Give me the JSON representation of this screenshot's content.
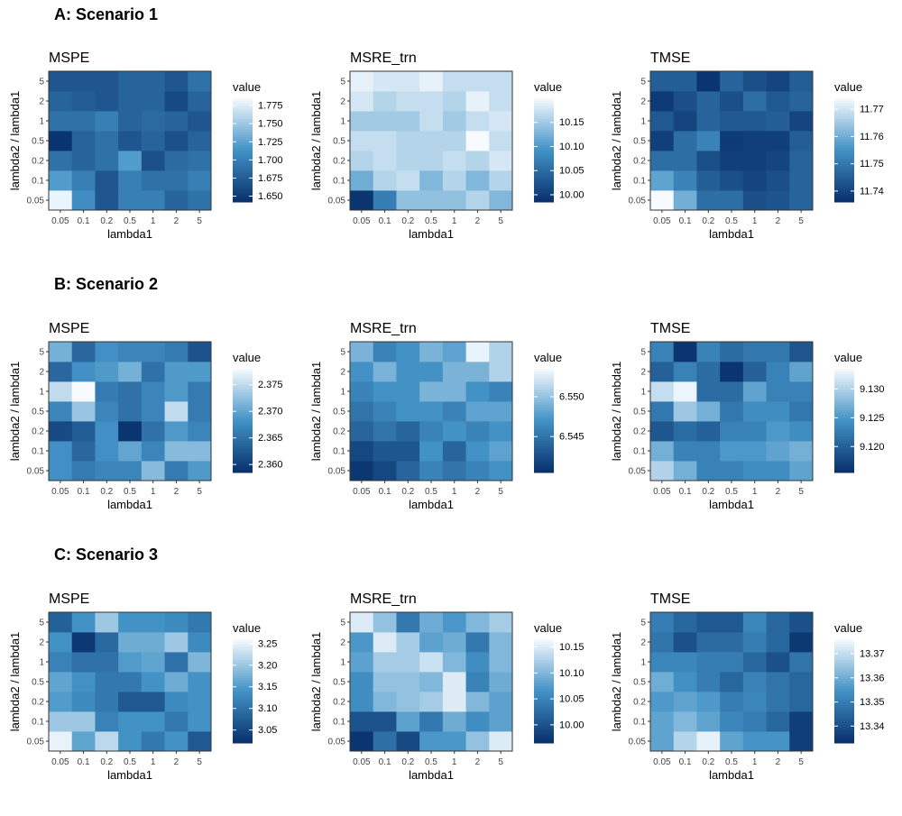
{
  "figure": {
    "sections": [
      {
        "title": "A: Scenario 1"
      },
      {
        "title": "B: Scenario 2"
      },
      {
        "title": "C: Scenario 3"
      }
    ]
  },
  "colors": {
    "low": "#08306b",
    "mid": "#4292c6",
    "high": "#f7fbff",
    "panel_border": "#333333",
    "text": "#000000",
    "tick_text": "#444444"
  },
  "chart_data": [
    {
      "type": "heatmap",
      "section": 0,
      "title": "MSPE",
      "xlabel": "lambda1",
      "ylabel": "lambda2 / lambda1",
      "x_categories": [
        "0.05",
        "0.1",
        "0.2",
        "0.5",
        "1",
        "2",
        "5"
      ],
      "y_categories": [
        "0.05",
        "0.1",
        "0.2",
        "0.5",
        "1",
        "2",
        "5"
      ],
      "legend": {
        "title": "value",
        "ticks": [
          "1.650",
          "1.675",
          "1.700",
          "1.725",
          "1.750",
          "1.775"
        ],
        "tick_values": [
          1.65,
          1.675,
          1.7,
          1.725,
          1.75,
          1.775
        ],
        "range": [
          1.642,
          1.785
        ]
      },
      "values": [
        [
          1.78,
          1.71,
          1.67,
          1.7,
          1.7,
          1.68,
          1.69
        ],
        [
          1.72,
          1.7,
          1.67,
          1.7,
          1.69,
          1.69,
          1.7
        ],
        [
          1.69,
          1.68,
          1.69,
          1.72,
          1.665,
          1.685,
          1.69
        ],
        [
          1.645,
          1.68,
          1.69,
          1.67,
          1.68,
          1.665,
          1.68
        ],
        [
          1.69,
          1.69,
          1.7,
          1.68,
          1.685,
          1.68,
          1.67
        ],
        [
          1.68,
          1.675,
          1.67,
          1.68,
          1.68,
          1.66,
          1.68
        ],
        [
          1.67,
          1.67,
          1.67,
          1.68,
          1.68,
          1.67,
          1.69
        ]
      ]
    },
    {
      "type": "heatmap",
      "section": 0,
      "title": "MSRE_trn",
      "xlabel": "lambda1",
      "ylabel": "lambda2 / lambda1",
      "x_categories": [
        "0.05",
        "0.1",
        "0.2",
        "0.5",
        "1",
        "2",
        "5"
      ],
      "y_categories": [
        "0.05",
        "0.1",
        "0.2",
        "0.5",
        "1",
        "2",
        "5"
      ],
      "legend": {
        "title": "value",
        "ticks": [
          "10.00",
          "10.05",
          "10.10",
          "10.15"
        ],
        "tick_values": [
          10.0,
          10.05,
          10.1,
          10.15
        ],
        "range": [
          9.985,
          10.2
        ]
      },
      "values": [
        [
          9.99,
          10.07,
          10.14,
          10.14,
          10.14,
          10.16,
          10.13
        ],
        [
          10.12,
          10.16,
          10.17,
          10.13,
          10.16,
          10.13,
          10.16
        ],
        [
          10.16,
          10.17,
          10.16,
          10.16,
          10.17,
          10.16,
          10.18
        ],
        [
          10.17,
          10.17,
          10.16,
          10.16,
          10.16,
          10.2,
          10.17
        ],
        [
          10.15,
          10.15,
          10.15,
          10.17,
          10.15,
          10.17,
          10.18
        ],
        [
          10.18,
          10.16,
          10.17,
          10.17,
          10.16,
          10.19,
          10.17
        ],
        [
          10.19,
          10.18,
          10.18,
          10.19,
          10.17,
          10.17,
          10.17
        ]
      ]
    },
    {
      "type": "heatmap",
      "section": 0,
      "title": "TMSE",
      "xlabel": "lambda1",
      "ylabel": "lambda2 / lambda1",
      "x_categories": [
        "0.05",
        "0.1",
        "0.2",
        "0.5",
        "1",
        "2",
        "5"
      ],
      "y_categories": [
        "0.05",
        "0.1",
        "0.2",
        "0.5",
        "1",
        "2",
        "5"
      ],
      "legend": {
        "title": "value",
        "ticks": [
          "11.74",
          "11.75",
          "11.76",
          "11.77"
        ],
        "tick_values": [
          11.74,
          11.75,
          11.76,
          11.77
        ],
        "range": [
          11.736,
          11.774
        ]
      },
      "values": [
        [
          11.774,
          11.76,
          11.748,
          11.748,
          11.742,
          11.743,
          11.746
        ],
        [
          11.758,
          11.752,
          11.745,
          11.742,
          11.74,
          11.742,
          11.746
        ],
        [
          11.748,
          11.748,
          11.742,
          11.739,
          11.739,
          11.74,
          11.746
        ],
        [
          11.739,
          11.748,
          11.752,
          11.738,
          11.739,
          11.739,
          11.745
        ],
        [
          11.744,
          11.74,
          11.746,
          11.744,
          11.744,
          11.745,
          11.74
        ],
        [
          11.738,
          11.742,
          11.746,
          11.742,
          11.748,
          11.744,
          11.746
        ],
        [
          11.745,
          11.745,
          11.737,
          11.746,
          11.742,
          11.74,
          11.745
        ]
      ]
    },
    {
      "type": "heatmap",
      "section": 1,
      "title": "MSPE",
      "xlabel": "lambda1",
      "ylabel": "lambda2 / lambda1",
      "x_categories": [
        "0.05",
        "0.1",
        "0.2",
        "0.5",
        "1",
        "2",
        "5"
      ],
      "y_categories": [
        "0.05",
        "0.1",
        "0.2",
        "0.5",
        "1",
        "2",
        "5"
      ],
      "legend": {
        "title": "value",
        "ticks": [
          "2.360",
          "2.365",
          "2.370",
          "2.375"
        ],
        "tick_values": [
          2.36,
          2.365,
          2.37,
          2.375
        ],
        "range": [
          2.3585,
          2.378
        ]
      },
      "values": [
        [
          2.368,
          2.366,
          2.367,
          2.367,
          2.372,
          2.366,
          2.369
        ],
        [
          2.368,
          2.364,
          2.368,
          2.37,
          2.367,
          2.372,
          2.372
        ],
        [
          2.361,
          2.363,
          2.368,
          2.359,
          2.365,
          2.369,
          2.367
        ],
        [
          2.367,
          2.373,
          2.367,
          2.365,
          2.367,
          2.375,
          2.366
        ],
        [
          2.375,
          2.378,
          2.366,
          2.365,
          2.367,
          2.369,
          2.366
        ],
        [
          2.364,
          2.368,
          2.369,
          2.371,
          2.365,
          2.369,
          2.369
        ],
        [
          2.371,
          2.364,
          2.368,
          2.367,
          2.367,
          2.366,
          2.362
        ]
      ]
    },
    {
      "type": "heatmap",
      "section": 1,
      "title": "MSRE_trn",
      "xlabel": "lambda1",
      "ylabel": "lambda2 / lambda1",
      "x_categories": [
        "0.05",
        "0.1",
        "0.2",
        "0.5",
        "1",
        "2",
        "5"
      ],
      "y_categories": [
        "0.05",
        "0.1",
        "0.2",
        "0.5",
        "1",
        "2",
        "5"
      ],
      "legend": {
        "title": "value",
        "ticks": [
          "6.545",
          "6.550"
        ],
        "tick_values": [
          6.545,
          6.55
        ],
        "range": [
          6.5405,
          6.5535
        ]
      },
      "values": [
        [
          6.541,
          6.542,
          6.544,
          6.546,
          6.545,
          6.546,
          6.547
        ],
        [
          6.542,
          6.543,
          6.543,
          6.547,
          6.544,
          6.547,
          6.548
        ],
        [
          6.544,
          6.545,
          6.544,
          6.546,
          6.547,
          6.546,
          6.547
        ],
        [
          6.545,
          6.546,
          6.547,
          6.547,
          6.546,
          6.548,
          6.548
        ],
        [
          6.546,
          6.547,
          6.547,
          6.549,
          6.549,
          6.547,
          6.546
        ],
        [
          6.547,
          6.549,
          6.547,
          6.547,
          6.549,
          6.549,
          6.551
        ],
        [
          6.549,
          6.546,
          6.547,
          6.549,
          6.548,
          6.553,
          6.551
        ]
      ]
    },
    {
      "type": "heatmap",
      "section": 1,
      "title": "TMSE",
      "xlabel": "lambda1",
      "ylabel": "lambda2 / lambda1",
      "x_categories": [
        "0.05",
        "0.1",
        "0.2",
        "0.5",
        "1",
        "2",
        "5"
      ],
      "y_categories": [
        "0.05",
        "0.1",
        "0.2",
        "0.5",
        "1",
        "2",
        "5"
      ],
      "legend": {
        "title": "value",
        "ticks": [
          "9.120",
          "9.125",
          "9.130"
        ],
        "tick_values": [
          9.12,
          9.125,
          9.13
        ],
        "range": [
          9.1155,
          9.1335
        ]
      },
      "values": [
        [
          9.13,
          9.127,
          9.123,
          9.123,
          9.124,
          9.124,
          9.126
        ],
        [
          9.127,
          9.123,
          9.123,
          9.125,
          9.125,
          9.126,
          9.127
        ],
        [
          9.119,
          9.121,
          9.12,
          9.123,
          9.123,
          9.125,
          9.124
        ],
        [
          9.122,
          9.129,
          9.127,
          9.122,
          9.124,
          9.124,
          9.122
        ],
        [
          9.131,
          9.133,
          9.121,
          9.121,
          9.126,
          9.123,
          9.123
        ],
        [
          9.12,
          9.123,
          9.121,
          9.116,
          9.12,
          9.123,
          9.126
        ],
        [
          9.123,
          9.116,
          9.123,
          9.121,
          9.122,
          9.122,
          9.119
        ]
      ]
    },
    {
      "type": "heatmap",
      "section": 2,
      "title": "MSPE",
      "xlabel": "lambda1",
      "ylabel": "lambda2 / lambda1",
      "x_categories": [
        "0.05",
        "0.1",
        "0.2",
        "0.5",
        "1",
        "2",
        "5"
      ],
      "y_categories": [
        "0.05",
        "0.1",
        "0.2",
        "0.5",
        "1",
        "2",
        "5"
      ],
      "legend": {
        "title": "value",
        "ticks": [
          "3.05",
          "3.10",
          "3.15",
          "3.20",
          "3.25"
        ],
        "tick_values": [
          3.05,
          3.1,
          3.15,
          3.2,
          3.25
        ],
        "range": [
          3.02,
          3.26
        ]
      },
      "values": [
        [
          3.25,
          3.16,
          3.22,
          3.14,
          3.11,
          3.14,
          3.07
        ],
        [
          3.2,
          3.2,
          3.12,
          3.14,
          3.14,
          3.11,
          3.14
        ],
        [
          3.15,
          3.13,
          3.11,
          3.07,
          3.07,
          3.13,
          3.14
        ],
        [
          3.16,
          3.14,
          3.11,
          3.11,
          3.14,
          3.17,
          3.14
        ],
        [
          3.12,
          3.1,
          3.1,
          3.15,
          3.16,
          3.1,
          3.18
        ],
        [
          3.14,
          3.03,
          3.09,
          3.17,
          3.17,
          3.2,
          3.13
        ],
        [
          3.08,
          3.14,
          3.2,
          3.14,
          3.14,
          3.13,
          3.11
        ]
      ]
    },
    {
      "type": "heatmap",
      "section": 2,
      "title": "MSRE_trn",
      "xlabel": "lambda1",
      "ylabel": "lambda2 / lambda1",
      "x_categories": [
        "0.05",
        "0.1",
        "0.2",
        "0.5",
        "1",
        "2",
        "5"
      ],
      "y_categories": [
        "0.05",
        "0.1",
        "0.2",
        "0.5",
        "1",
        "2",
        "5"
      ],
      "legend": {
        "title": "value",
        "ticks": [
          "10.00",
          "10.05",
          "10.10",
          "10.15"
        ],
        "tick_values": [
          10.0,
          10.05,
          10.1,
          10.15
        ],
        "range": [
          9.965,
          10.165
        ]
      },
      "values": [
        [
          9.97,
          10.03,
          9.99,
          10.07,
          10.07,
          10.11,
          10.15
        ],
        [
          10.0,
          10.0,
          10.08,
          10.04,
          10.09,
          10.06,
          10.08
        ],
        [
          10.06,
          10.1,
          10.11,
          10.12,
          10.15,
          10.1,
          10.08
        ],
        [
          10.06,
          10.11,
          10.11,
          10.1,
          10.15,
          10.05,
          10.09
        ],
        [
          10.08,
          10.12,
          10.12,
          10.14,
          10.1,
          10.06,
          10.1
        ],
        [
          10.07,
          10.15,
          10.12,
          10.08,
          10.09,
          10.04,
          10.1
        ],
        [
          10.15,
          10.11,
          10.04,
          10.09,
          10.07,
          10.1,
          10.12
        ]
      ]
    },
    {
      "type": "heatmap",
      "section": 2,
      "title": "TMSE",
      "xlabel": "lambda1",
      "ylabel": "lambda2 / lambda1",
      "x_categories": [
        "0.05",
        "0.1",
        "0.2",
        "0.5",
        "1",
        "2",
        "5"
      ],
      "y_categories": [
        "0.05",
        "0.1",
        "0.2",
        "0.5",
        "1",
        "2",
        "5"
      ],
      "legend": {
        "title": "value",
        "ticks": [
          "13.34",
          "13.35",
          "13.36",
          "13.37"
        ],
        "tick_values": [
          13.34,
          13.35,
          13.36,
          13.37
        ],
        "range": [
          13.333,
          13.376
        ]
      },
      "values": [
        [
          13.358,
          13.368,
          13.374,
          13.358,
          13.355,
          13.355,
          13.336
        ],
        [
          13.358,
          13.362,
          13.358,
          13.352,
          13.35,
          13.345,
          13.336
        ],
        [
          13.356,
          13.358,
          13.356,
          13.35,
          13.352,
          13.348,
          13.345
        ],
        [
          13.36,
          13.354,
          13.35,
          13.345,
          13.351,
          13.348,
          13.345
        ],
        [
          13.352,
          13.352,
          13.35,
          13.35,
          13.345,
          13.34,
          13.348
        ],
        [
          13.348,
          13.34,
          13.346,
          13.346,
          13.35,
          13.345,
          13.335
        ],
        [
          13.35,
          13.345,
          13.342,
          13.342,
          13.352,
          13.345,
          13.34
        ]
      ]
    }
  ]
}
